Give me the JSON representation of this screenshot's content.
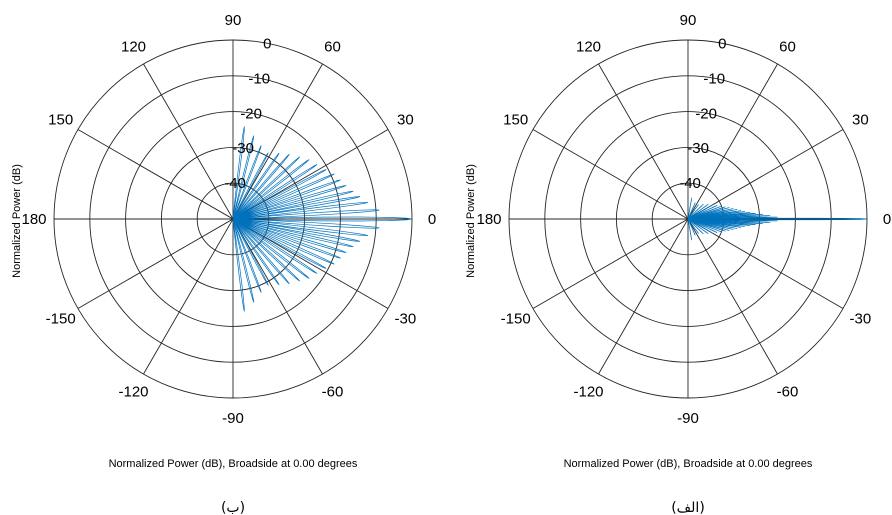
{
  "chart_data": [
    {
      "type": "polar",
      "panel_label": "(ب)",
      "ylabel": "Normalized Power (dB)",
      "xlabel": "Normalized Power (dB), Broadside at 0.00 degrees",
      "angle_ticks": [
        "0",
        "30",
        "60",
        "90",
        "120",
        "150",
        "180",
        "-150",
        "-120",
        "-90",
        "-60",
        "-30"
      ],
      "radial_ticks": [
        "0",
        "-10",
        "-20",
        "-30",
        "-40"
      ],
      "rlim": [
        -50,
        0
      ],
      "angle_range": [
        -90,
        90
      ],
      "grid": true,
      "series": [
        {
          "color": "#0072BD",
          "mainlobe": {
            "angle": 0,
            "value": 0
          },
          "sidelobes": [
            {
              "angle": 3.5,
              "value": -9
            },
            {
              "angle": 7,
              "value": -12
            },
            {
              "angle": 10,
              "value": -14
            },
            {
              "angle": 13,
              "value": -15.5
            },
            {
              "angle": 16.5,
              "value": -17
            },
            {
              "angle": 20,
              "value": -18
            },
            {
              "angle": 24,
              "value": -19
            },
            {
              "angle": 28,
              "value": -20.5
            },
            {
              "angle": 33,
              "value": -22
            },
            {
              "angle": 38,
              "value": -23
            },
            {
              "angle": 43,
              "value": -24.5
            },
            {
              "angle": 49,
              "value": -26
            },
            {
              "angle": 55,
              "value": -27.5
            },
            {
              "angle": 62,
              "value": -29
            },
            {
              "angle": 69,
              "value": -28
            },
            {
              "angle": 76,
              "value": -26
            },
            {
              "angle": 83,
              "value": -24
            },
            {
              "angle": -3.5,
              "value": -9
            },
            {
              "angle": -7,
              "value": -12
            },
            {
              "angle": -10,
              "value": -14
            },
            {
              "angle": -13,
              "value": -15.5
            },
            {
              "angle": -16.5,
              "value": -17
            },
            {
              "angle": -20,
              "value": -18
            },
            {
              "angle": -24,
              "value": -19
            },
            {
              "angle": -28,
              "value": -20.5
            },
            {
              "angle": -33,
              "value": -22
            },
            {
              "angle": -38,
              "value": -23
            },
            {
              "angle": -43,
              "value": -24.5
            },
            {
              "angle": -49,
              "value": -26
            },
            {
              "angle": -55,
              "value": -27.5
            },
            {
              "angle": -62,
              "value": -29
            },
            {
              "angle": -69,
              "value": -28
            },
            {
              "angle": -76,
              "value": -26
            },
            {
              "angle": -83,
              "value": -24
            }
          ]
        }
      ]
    },
    {
      "type": "polar",
      "panel_label": "(الف)",
      "ylabel": "Normalized Power (dB)",
      "xlabel": "Normalized Power (dB), Broadside at 0.00 degrees",
      "angle_ticks": [
        "0",
        "30",
        "60",
        "90",
        "120",
        "150",
        "180",
        "-150",
        "-120",
        "-90",
        "-60",
        "-30"
      ],
      "radial_ticks": [
        "0",
        "-10",
        "-20",
        "-30",
        "-40"
      ],
      "rlim": [
        -50,
        0
      ],
      "angle_range": [
        -90,
        90
      ],
      "grid": true,
      "series": [
        {
          "color": "#0072BD",
          "mainlobe": {
            "angle": 0,
            "value": 0
          },
          "sidelobes": [
            {
              "angle": 1.2,
              "value": -25
            },
            {
              "angle": 2.4,
              "value": -27
            },
            {
              "angle": 3.6,
              "value": -29
            },
            {
              "angle": 4.8,
              "value": -31
            },
            {
              "angle": 6,
              "value": -32.5
            },
            {
              "angle": 7.5,
              "value": -34
            },
            {
              "angle": 9,
              "value": -35
            },
            {
              "angle": 11,
              "value": -36
            },
            {
              "angle": 13,
              "value": -37
            },
            {
              "angle": 15.5,
              "value": -38
            },
            {
              "angle": 18,
              "value": -39
            },
            {
              "angle": 21,
              "value": -40
            },
            {
              "angle": 25,
              "value": -41
            },
            {
              "angle": 30,
              "value": -42
            },
            {
              "angle": 36,
              "value": -43
            },
            {
              "angle": 44,
              "value": -44
            },
            {
              "angle": 54,
              "value": -45
            },
            {
              "angle": 66,
              "value": -45
            },
            {
              "angle": 80,
              "value": -44
            },
            {
              "angle": -1.2,
              "value": -25
            },
            {
              "angle": -2.4,
              "value": -27
            },
            {
              "angle": -3.6,
              "value": -29
            },
            {
              "angle": -4.8,
              "value": -31
            },
            {
              "angle": -6,
              "value": -32.5
            },
            {
              "angle": -7.5,
              "value": -34
            },
            {
              "angle": -9,
              "value": -35
            },
            {
              "angle": -11,
              "value": -36
            },
            {
              "angle": -13,
              "value": -37
            },
            {
              "angle": -15.5,
              "value": -38
            },
            {
              "angle": -18,
              "value": -39
            },
            {
              "angle": -21,
              "value": -40
            },
            {
              "angle": -25,
              "value": -41
            },
            {
              "angle": -30,
              "value": -42
            },
            {
              "angle": -36,
              "value": -43
            },
            {
              "angle": -44,
              "value": -44
            },
            {
              "angle": -54,
              "value": -45
            },
            {
              "angle": -66,
              "value": -45
            },
            {
              "angle": -80,
              "value": -44
            }
          ]
        }
      ]
    }
  ]
}
